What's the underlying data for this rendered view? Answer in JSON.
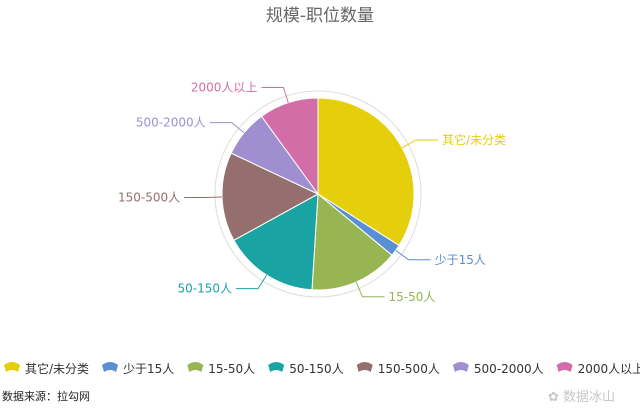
{
  "chart_data": {
    "type": "pie",
    "title": "规模-职位数量",
    "categories": [
      "其它/未分类",
      "少于15人",
      "15-50人",
      "50-150人",
      "150-500人",
      "500-2000人",
      "2000人以上"
    ],
    "values": [
      34,
      2,
      15,
      16,
      15,
      8,
      10
    ],
    "colors": [
      "#e5cf0d",
      "#5b8fd4",
      "#97b552",
      "#1aa3a3",
      "#956f6d",
      "#9f8fd0",
      "#d36da8"
    ],
    "legend_position": "bottom"
  },
  "source_label": "数据来源：拉勾网",
  "watermark_text": "数据冰山",
  "watermark_icon": "wechat-logo-icon"
}
